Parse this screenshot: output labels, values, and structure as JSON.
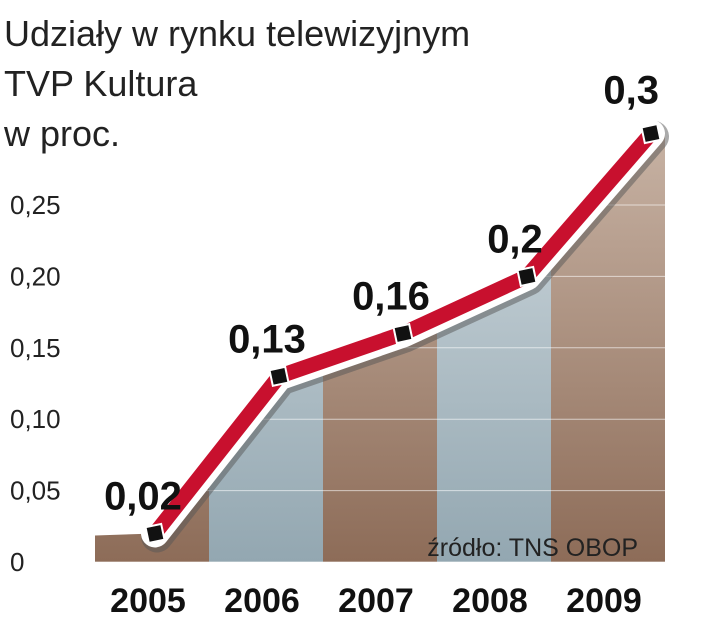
{
  "chart_data": {
    "type": "line",
    "title": [
      "Udziały w rynku telewizyjnym",
      "TVP Kultura"
    ],
    "y_label": "w proc.",
    "source": "źródło: TNS OBOP",
    "categories": [
      "2005",
      "2006",
      "2007",
      "2008",
      "2009"
    ],
    "values": [
      0.02,
      0.13,
      0.16,
      0.2,
      0.3
    ],
    "value_labels": [
      "0,02",
      "0,13",
      "0,16",
      "0,2",
      "0,3"
    ],
    "color": "#c8102e",
    "ylim": [
      0,
      0.3
    ],
    "yticks": [
      0,
      {
        "value": 0.05,
        "label": "0,05"
      },
      {
        "value": 0.1,
        "label": "0,10"
      },
      {
        "value": 0.15,
        "label": "0,15"
      },
      {
        "value": 0.2,
        "label": "0,20"
      },
      {
        "value": 0.25,
        "label": "0,25"
      }
    ],
    "grid": true
  }
}
